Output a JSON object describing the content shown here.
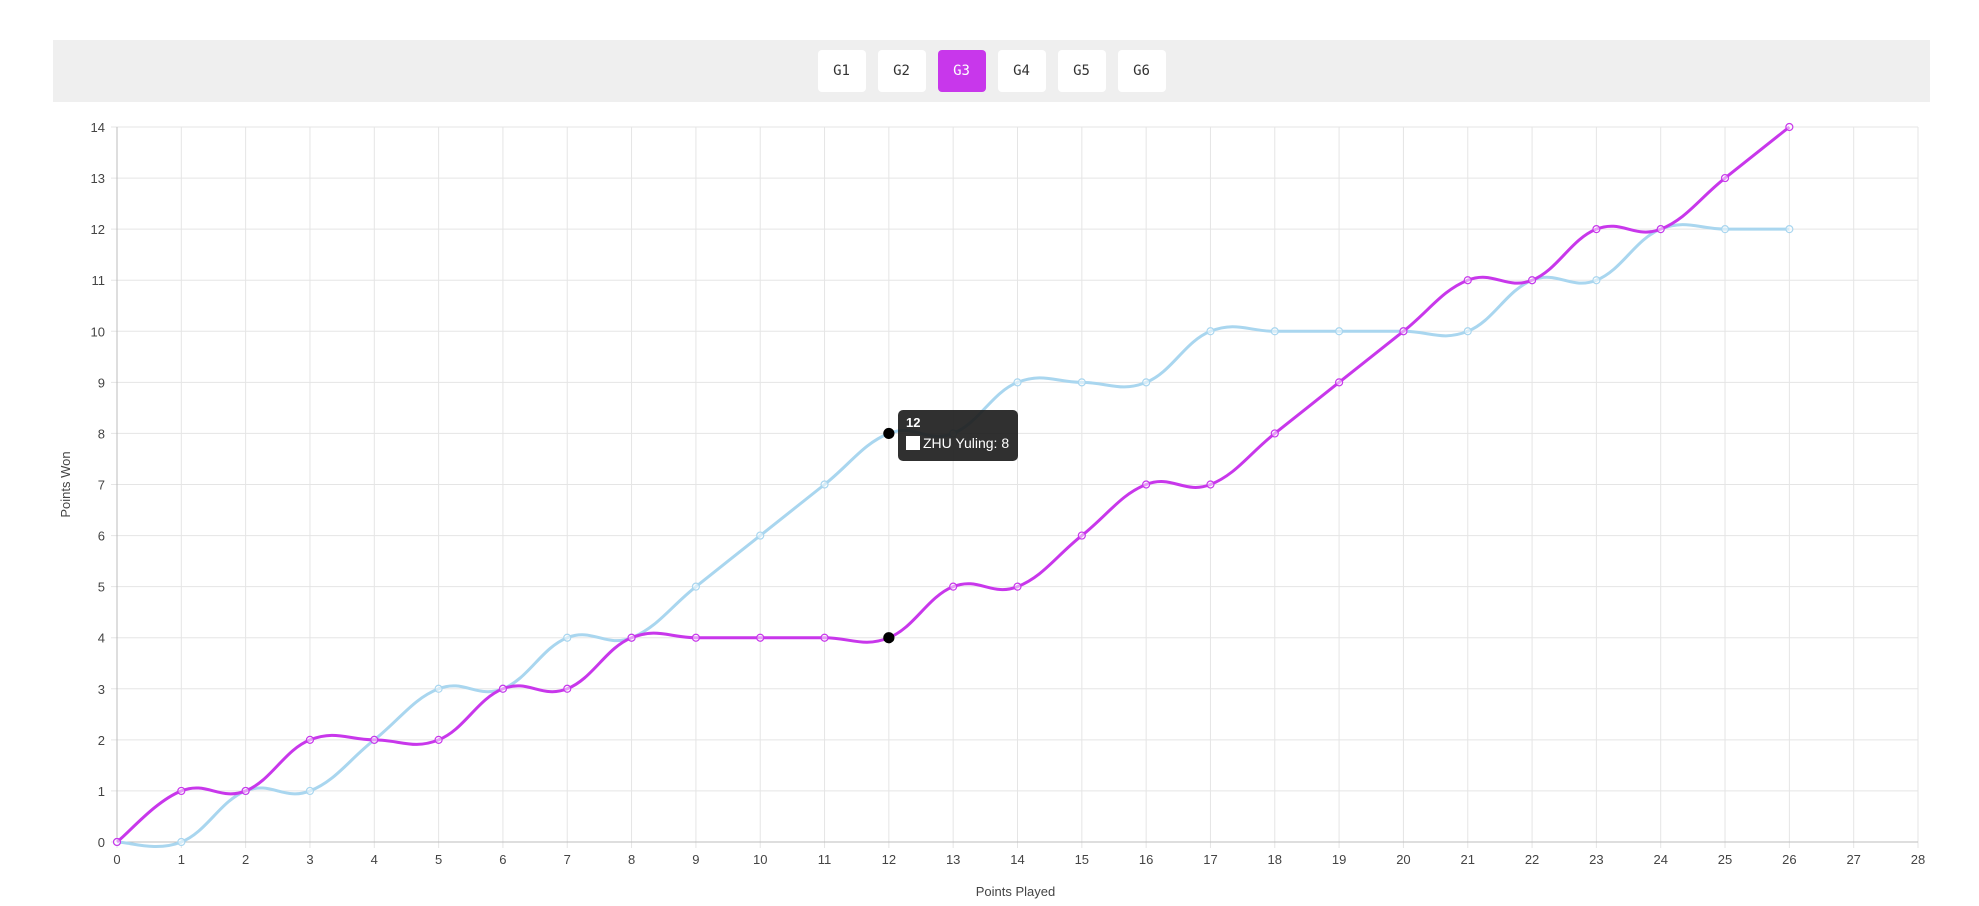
{
  "game_tabs": {
    "items": [
      {
        "label": "G1",
        "active": false
      },
      {
        "label": "G2",
        "active": false
      },
      {
        "label": "G3",
        "active": true
      },
      {
        "label": "G4",
        "active": false
      },
      {
        "label": "G5",
        "active": false
      },
      {
        "label": "G6",
        "active": false
      }
    ],
    "active_color": "#c837eb"
  },
  "tooltip": {
    "title": "12",
    "row_label": "ZHU Yuling: 8"
  },
  "chart_data": {
    "type": "line",
    "xlabel": "Points Played",
    "ylabel": "Points Won",
    "xlim": [
      0,
      28
    ],
    "ylim": [
      0,
      14
    ],
    "grid": true,
    "x": [
      0,
      1,
      2,
      3,
      4,
      5,
      6,
      7,
      8,
      9,
      10,
      11,
      12,
      13,
      14,
      15,
      16,
      17,
      18,
      19,
      20,
      21,
      22,
      23,
      24,
      25,
      26
    ],
    "series": [
      {
        "color": "#a9d6ef",
        "values": [
          0,
          0,
          1,
          1,
          2,
          3,
          3,
          4,
          4,
          5,
          6,
          7,
          8,
          8,
          9,
          9,
          9,
          10,
          10,
          10,
          10,
          10,
          11,
          11,
          12,
          12,
          12
        ]
      },
      {
        "color": "#c837eb",
        "values": [
          0,
          1,
          1,
          2,
          2,
          2,
          3,
          3,
          4,
          4,
          4,
          4,
          4,
          5,
          5,
          6,
          7,
          7,
          8,
          9,
          10,
          11,
          11,
          12,
          12,
          13,
          14
        ]
      }
    ],
    "highlight_x": 12
  }
}
